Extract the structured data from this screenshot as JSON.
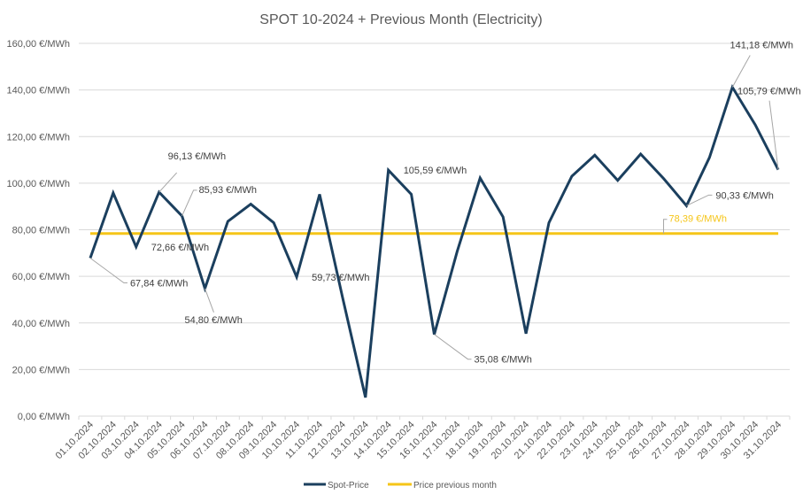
{
  "chart_data": {
    "type": "line",
    "title": "SPOT 10-2024 + Previous Month (Electricity)",
    "xlabel": "",
    "ylabel": "",
    "ylim": [
      0,
      160
    ],
    "ytick_step": 20,
    "ytick_labels": [
      "0,00 €/MWh",
      "20,00 €/MWh",
      "40,00 €/MWh",
      "60,00 €/MWh",
      "80,00 €/MWh",
      "100,00 €/MWh",
      "120,00 €/MWh",
      "140,00 €/MWh",
      "160,00 €/MWh"
    ],
    "grid": true,
    "legend": "bottom",
    "categories": [
      "01.10.2024",
      "02.10.2024",
      "03.10.2024",
      "04.10.2024",
      "05.10.2024",
      "06.10.2024",
      "07.10.2024",
      "08.10.2024",
      "09.10.2024",
      "10.10.2024",
      "11.10.2024",
      "12.10.2024",
      "13.10.2024",
      "14.10.2024",
      "15.10.2024",
      "16.10.2024",
      "17.10.2024",
      "18.10.2024",
      "19.10.2024",
      "20.10.2024",
      "21.10.2024",
      "22.10.2024",
      "23.10.2024",
      "24.10.2024",
      "25.10.2024",
      "26.10.2024",
      "27.10.2024",
      "28.10.2024",
      "29.10.2024",
      "30.10.2024",
      "31.10.2024"
    ],
    "series": [
      {
        "name": "Spot-Price",
        "color": "#1b3f5e",
        "values": [
          67.84,
          95.8,
          72.66,
          96.13,
          85.93,
          54.8,
          83.6,
          91.0,
          83.0,
          59.73,
          95.2,
          51.0,
          8.0,
          105.59,
          95.2,
          35.08,
          70.7,
          102.2,
          85.5,
          35.4,
          83.0,
          103.0,
          112.0,
          101.2,
          112.5,
          102.0,
          90.33,
          111.0,
          141.18,
          125.0,
          105.79
        ]
      },
      {
        "name": "Price previous month",
        "color": "#f5c518",
        "values": [
          78.39,
          78.39,
          78.39,
          78.39,
          78.39,
          78.39,
          78.39,
          78.39,
          78.39,
          78.39,
          78.39,
          78.39,
          78.39,
          78.39,
          78.39,
          78.39,
          78.39,
          78.39,
          78.39,
          78.39,
          78.39,
          78.39,
          78.39,
          78.39,
          78.39,
          78.39,
          78.39,
          78.39,
          78.39,
          78.39,
          78.39
        ]
      }
    ],
    "annotations": [
      {
        "series": 0,
        "index": 0,
        "text": "67,84 €/MWh",
        "pos": "below-right-leader"
      },
      {
        "series": 0,
        "index": 2,
        "text": "72,66 €/MWh",
        "pos": "right"
      },
      {
        "series": 0,
        "index": 3,
        "text": "96,13 €/MWh",
        "pos": "above-leader"
      },
      {
        "series": 0,
        "index": 4,
        "text": "85,93 €/MWh",
        "pos": "upper-right-leader"
      },
      {
        "series": 0,
        "index": 5,
        "text": "54,80 €/MWh",
        "pos": "below-leader"
      },
      {
        "series": 0,
        "index": 9,
        "text": "59,73 €/MWh",
        "pos": "right"
      },
      {
        "series": 0,
        "index": 13,
        "text": "105,59 €/MWh",
        "pos": "right"
      },
      {
        "series": 0,
        "index": 15,
        "text": "35,08 €/MWh",
        "pos": "below-right-leader"
      },
      {
        "series": 0,
        "index": 26,
        "text": "90,33 €/MWh",
        "pos": "right-leader"
      },
      {
        "series": 0,
        "index": 28,
        "text": "141,18 €/MWh",
        "pos": "above-leader"
      },
      {
        "series": 0,
        "index": 30,
        "text": "105,79 €/MWh",
        "pos": "above-leader"
      },
      {
        "series": 1,
        "index": 25,
        "text": "78,39 €/MWh",
        "pos": "above-leader"
      }
    ]
  }
}
